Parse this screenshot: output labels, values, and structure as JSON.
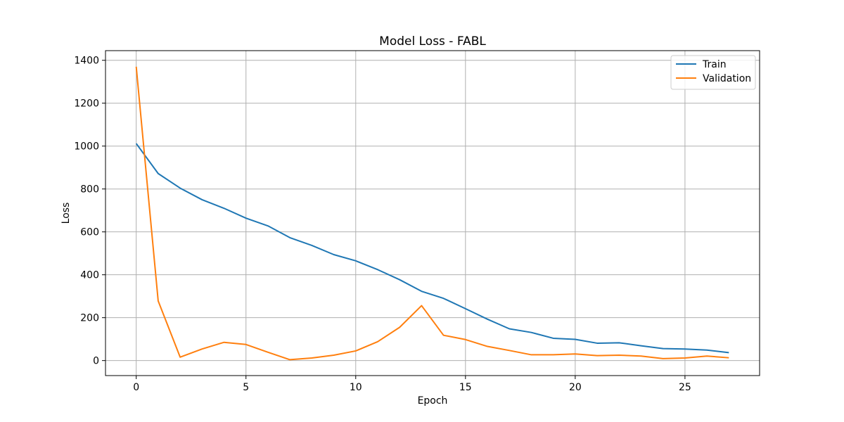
{
  "chart_data": {
    "type": "line",
    "title": "Model Loss - FABL",
    "xlabel": "Epoch",
    "ylabel": "Loss",
    "xlim": [
      -1.4,
      28.4
    ],
    "ylim": [
      -70,
      1445
    ],
    "x_ticks": [
      0,
      5,
      10,
      15,
      20,
      25
    ],
    "y_ticks": [
      0,
      200,
      400,
      600,
      800,
      1000,
      1200,
      1400
    ],
    "grid": true,
    "legend_position": "top-right",
    "x": [
      0,
      1,
      2,
      3,
      4,
      5,
      6,
      7,
      8,
      9,
      10,
      11,
      12,
      13,
      14,
      15,
      16,
      17,
      18,
      19,
      20,
      21,
      22,
      23,
      24,
      25,
      26,
      27
    ],
    "series": [
      {
        "name": "Train",
        "color": "#1f77b4",
        "values": [
          1012,
          872,
          804,
          750,
          710,
          664,
          628,
          573,
          537,
          494,
          465,
          424,
          377,
          323,
          290,
          242,
          193,
          148,
          131,
          104,
          99,
          81,
          83,
          69,
          56,
          54,
          49,
          37
        ]
      },
      {
        "name": "Validation",
        "color": "#ff7f0e",
        "values": [
          1370,
          278,
          16,
          54,
          85,
          75,
          39,
          4,
          12,
          25,
          45,
          88,
          155,
          256,
          118,
          98,
          66,
          47,
          27,
          27,
          31,
          23,
          25,
          21,
          9,
          12,
          21,
          13
        ]
      }
    ]
  }
}
